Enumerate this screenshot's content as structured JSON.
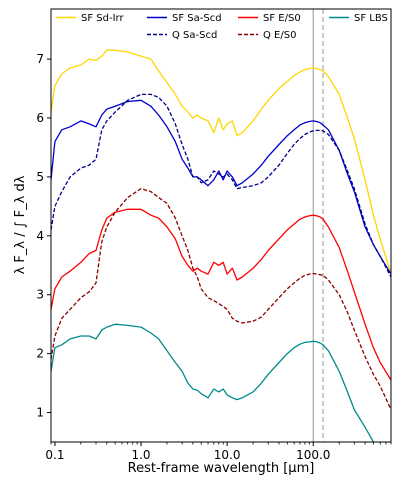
{
  "chart_data": {
    "type": "line",
    "xlabel": "Rest-frame wavelength [μm]",
    "ylabel": "λ F_λ / ∫ F_λ dλ",
    "xscale": "log",
    "xlim": [
      0.09,
      800
    ],
    "ylim": [
      0.5,
      7.85
    ],
    "x_ticks": [
      {
        "value": 0.1,
        "label": "0.1"
      },
      {
        "value": 1.0,
        "label": "1.0"
      },
      {
        "value": 10.0,
        "label": "10.0"
      },
      {
        "value": 100.0,
        "label": "100.0"
      }
    ],
    "y_ticks": [
      1,
      2,
      3,
      4,
      5,
      6,
      7
    ],
    "grid": false,
    "legend": "top, 3 columns",
    "vlines": [
      {
        "x": 100,
        "style": "solid",
        "color": "#a8a8a8"
      },
      {
        "x": 130,
        "style": "dashed",
        "color": "#a8a8a8"
      }
    ],
    "series": [
      {
        "name": "SF Sd-Irr",
        "color": "#ffd700",
        "style": "solid",
        "x": [
          0.09,
          0.1,
          0.12,
          0.15,
          0.2,
          0.25,
          0.3,
          0.35,
          0.4,
          0.5,
          0.7,
          1.0,
          1.3,
          1.6,
          2.0,
          2.5,
          3.0,
          3.5,
          4.0,
          4.5,
          5.0,
          6.0,
          7.0,
          8.0,
          9.0,
          10.0,
          11.5,
          13.0,
          15.0,
          20.0,
          25.0,
          30.0,
          40.0,
          50.0,
          60.0,
          70.0,
          80.0,
          90.0,
          100.0,
          110.0,
          120.0,
          130.0,
          150.0,
          200.0,
          250.0,
          300.0,
          400.0,
          500.0,
          600.0,
          800.0
        ],
        "y": [
          6.1,
          6.55,
          6.75,
          6.85,
          6.9,
          7.0,
          6.98,
          7.05,
          7.15,
          7.15,
          7.12,
          7.05,
          7.0,
          6.8,
          6.6,
          6.4,
          6.2,
          6.1,
          6.0,
          6.05,
          6.0,
          5.95,
          5.75,
          6.0,
          5.8,
          5.9,
          5.95,
          5.7,
          5.75,
          5.95,
          6.15,
          6.3,
          6.5,
          6.62,
          6.72,
          6.78,
          6.82,
          6.84,
          6.85,
          6.84,
          6.82,
          6.8,
          6.7,
          6.4,
          6.0,
          5.65,
          4.95,
          4.35,
          3.95,
          3.35
        ]
      },
      {
        "name": "SF Sa-Scd",
        "color": "#0000cd",
        "style": "solid",
        "x": [
          0.09,
          0.1,
          0.12,
          0.15,
          0.2,
          0.25,
          0.3,
          0.35,
          0.4,
          0.5,
          0.7,
          1.0,
          1.3,
          1.6,
          2.0,
          2.5,
          3.0,
          3.5,
          4.0,
          4.5,
          5.0,
          6.0,
          7.0,
          8.0,
          9.0,
          10.0,
          11.5,
          13.0,
          15.0,
          20.0,
          25.0,
          30.0,
          40.0,
          50.0,
          60.0,
          70.0,
          80.0,
          90.0,
          100.0,
          110.0,
          120.0,
          130.0,
          150.0,
          200.0,
          250.0,
          300.0,
          400.0,
          500.0,
          600.0,
          800.0
        ],
        "y": [
          4.95,
          5.6,
          5.8,
          5.85,
          5.95,
          5.9,
          5.85,
          6.05,
          6.15,
          6.2,
          6.28,
          6.3,
          6.2,
          6.05,
          5.85,
          5.6,
          5.3,
          5.15,
          5.0,
          5.0,
          4.95,
          4.85,
          4.95,
          5.1,
          4.95,
          5.1,
          5.0,
          4.85,
          4.9,
          5.05,
          5.2,
          5.35,
          5.55,
          5.7,
          5.8,
          5.88,
          5.92,
          5.94,
          5.95,
          5.94,
          5.92,
          5.88,
          5.8,
          5.45,
          5.05,
          4.75,
          4.15,
          3.85,
          3.65,
          3.35
        ]
      },
      {
        "name": "Q Sa-Scd",
        "color": "#00008b",
        "style": "dashed",
        "x": [
          0.09,
          0.1,
          0.12,
          0.15,
          0.2,
          0.25,
          0.3,
          0.35,
          0.4,
          0.5,
          0.7,
          1.0,
          1.3,
          1.6,
          2.0,
          2.5,
          3.0,
          3.5,
          4.0,
          4.5,
          5.0,
          6.0,
          7.0,
          8.0,
          9.0,
          10.0,
          11.5,
          13.0,
          15.0,
          20.0,
          25.0,
          30.0,
          40.0,
          50.0,
          60.0,
          70.0,
          80.0,
          90.0,
          100.0,
          110.0,
          120.0,
          130.0,
          150.0,
          200.0,
          250.0,
          300.0,
          400.0,
          500.0,
          600.0,
          800.0
        ],
        "y": [
          4.1,
          4.5,
          4.75,
          5.0,
          5.15,
          5.2,
          5.3,
          5.8,
          5.95,
          6.1,
          6.3,
          6.4,
          6.4,
          6.35,
          6.2,
          5.9,
          5.55,
          5.3,
          5.0,
          5.0,
          4.9,
          4.95,
          5.1,
          5.05,
          5.0,
          5.05,
          4.95,
          4.8,
          4.82,
          4.85,
          4.9,
          5.0,
          5.2,
          5.4,
          5.55,
          5.65,
          5.72,
          5.76,
          5.78,
          5.79,
          5.79,
          5.78,
          5.72,
          5.45,
          5.1,
          4.8,
          4.2,
          3.85,
          3.65,
          3.3
        ]
      },
      {
        "name": "SF E/S0",
        "color": "#ff0000",
        "style": "solid",
        "x": [
          0.09,
          0.1,
          0.12,
          0.15,
          0.2,
          0.25,
          0.3,
          0.35,
          0.4,
          0.5,
          0.7,
          1.0,
          1.3,
          1.6,
          2.0,
          2.5,
          3.0,
          3.5,
          4.0,
          4.5,
          5.0,
          6.0,
          7.0,
          8.0,
          9.0,
          10.0,
          11.5,
          13.0,
          15.0,
          20.0,
          25.0,
          30.0,
          40.0,
          50.0,
          60.0,
          70.0,
          80.0,
          90.0,
          100.0,
          110.0,
          120.0,
          130.0,
          150.0,
          200.0,
          250.0,
          300.0,
          400.0,
          500.0,
          600.0,
          800.0
        ],
        "y": [
          2.75,
          3.1,
          3.3,
          3.4,
          3.55,
          3.7,
          3.75,
          4.1,
          4.3,
          4.4,
          4.45,
          4.45,
          4.35,
          4.3,
          4.15,
          3.95,
          3.65,
          3.5,
          3.4,
          3.45,
          3.4,
          3.35,
          3.55,
          3.5,
          3.55,
          3.35,
          3.45,
          3.25,
          3.3,
          3.45,
          3.6,
          3.75,
          3.95,
          4.1,
          4.2,
          4.28,
          4.32,
          4.34,
          4.35,
          4.34,
          4.32,
          4.28,
          4.15,
          3.8,
          3.4,
          3.05,
          2.5,
          2.1,
          1.85,
          1.55
        ]
      },
      {
        "name": "Q E/S0",
        "color": "#8b0000",
        "style": "dashed",
        "x": [
          0.09,
          0.1,
          0.12,
          0.15,
          0.2,
          0.25,
          0.3,
          0.35,
          0.4,
          0.5,
          0.7,
          1.0,
          1.3,
          1.6,
          2.0,
          2.5,
          3.0,
          3.5,
          4.0,
          4.5,
          5.0,
          6.0,
          7.0,
          8.0,
          9.0,
          10.0,
          11.5,
          13.0,
          15.0,
          20.0,
          25.0,
          30.0,
          40.0,
          50.0,
          60.0,
          70.0,
          80.0,
          90.0,
          100.0,
          110.0,
          120.0,
          130.0,
          150.0,
          200.0,
          250.0,
          300.0,
          400.0,
          500.0,
          600.0,
          800.0
        ],
        "y": [
          1.9,
          2.3,
          2.6,
          2.75,
          2.95,
          3.05,
          3.2,
          3.9,
          4.15,
          4.4,
          4.65,
          4.8,
          4.75,
          4.65,
          4.55,
          4.3,
          4.0,
          3.75,
          3.45,
          3.3,
          3.1,
          2.95,
          2.9,
          2.85,
          2.8,
          2.75,
          2.6,
          2.55,
          2.52,
          2.55,
          2.62,
          2.75,
          2.95,
          3.1,
          3.2,
          3.28,
          3.33,
          3.35,
          3.36,
          3.35,
          3.34,
          3.33,
          3.25,
          3.0,
          2.7,
          2.4,
          1.95,
          1.65,
          1.45,
          1.05
        ]
      },
      {
        "name": "SF LBS",
        "color": "#008b8b",
        "style": "solid",
        "x": [
          0.09,
          0.1,
          0.12,
          0.15,
          0.2,
          0.25,
          0.3,
          0.35,
          0.4,
          0.5,
          0.7,
          1.0,
          1.3,
          1.6,
          2.0,
          2.5,
          3.0,
          3.5,
          4.0,
          4.5,
          5.0,
          6.0,
          7.0,
          8.0,
          9.0,
          10.0,
          11.5,
          13.0,
          15.0,
          20.0,
          25.0,
          30.0,
          40.0,
          50.0,
          60.0,
          70.0,
          80.0,
          90.0,
          100.0,
          110.0,
          120.0,
          130.0,
          150.0,
          200.0,
          250.0,
          300.0,
          400.0,
          500.0,
          600.0,
          800.0
        ],
        "y": [
          1.7,
          2.1,
          2.15,
          2.25,
          2.3,
          2.3,
          2.25,
          2.4,
          2.45,
          2.5,
          2.48,
          2.45,
          2.35,
          2.25,
          2.05,
          1.85,
          1.7,
          1.5,
          1.4,
          1.38,
          1.32,
          1.25,
          1.4,
          1.35,
          1.4,
          1.3,
          1.25,
          1.22,
          1.25,
          1.35,
          1.5,
          1.65,
          1.85,
          2.0,
          2.1,
          2.16,
          2.19,
          2.2,
          2.21,
          2.2,
          2.18,
          2.15,
          2.05,
          1.7,
          1.35,
          1.05,
          0.75,
          0.5,
          0.35,
          0.2
        ]
      }
    ]
  }
}
